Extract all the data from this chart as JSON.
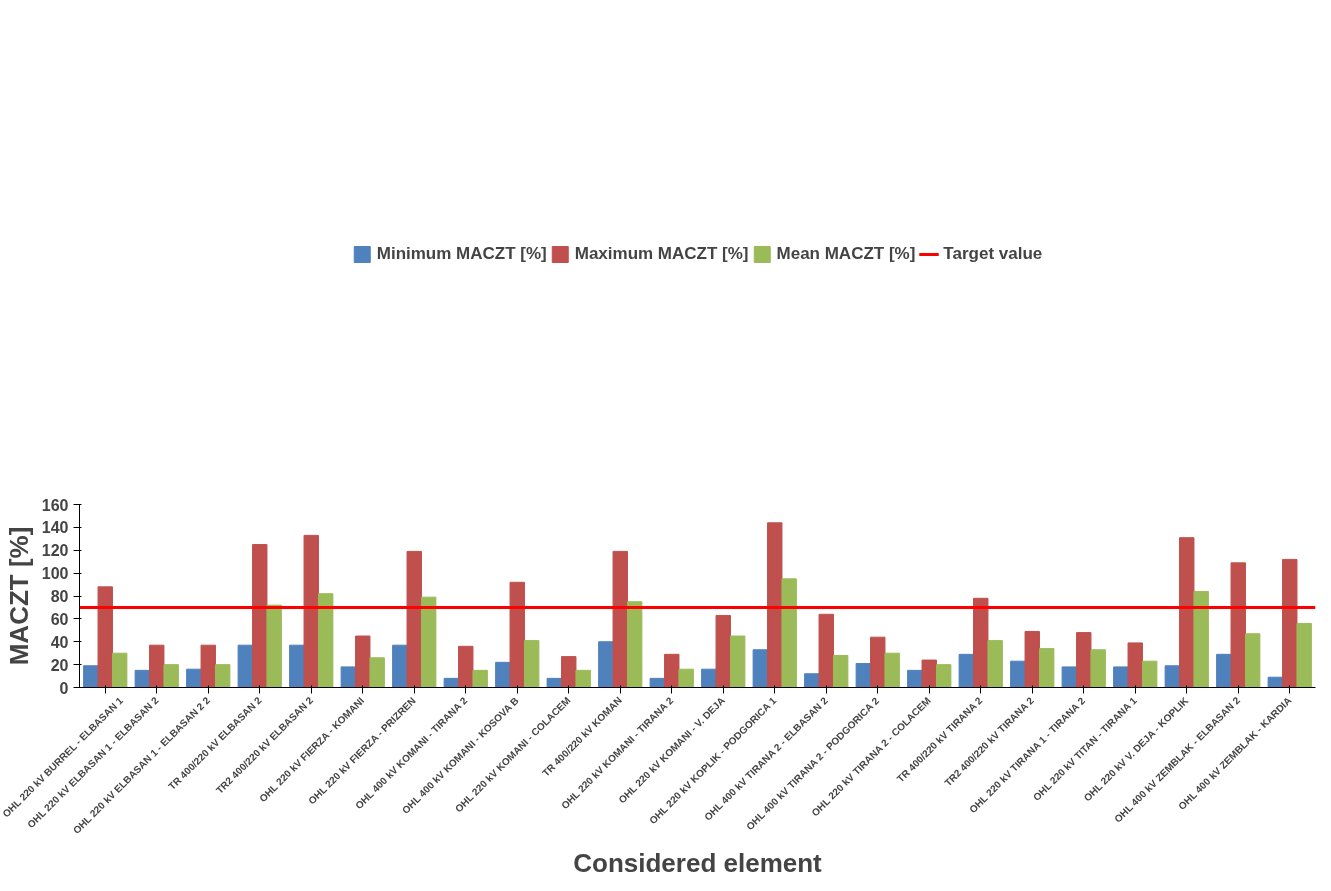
{
  "chart_data": {
    "type": "bar",
    "xlabel": "Considered element",
    "ylabel": "MACZT [%]",
    "categories": [
      "OHL 220 kV BURREL - ELBASAN 1",
      "OHL 220 kV ELBASAN 1 - ELBASAN 2",
      "OHL 220 kV ELBASAN 1 - ELBASAN 2 2",
      "TR 400/220 kV ELBASAN 2",
      "TR2 400/220 kV ELBASAN 2",
      "OHL 220 kV FIERZA - KOMANI",
      "OHL 220 kV FIERZA - PRIZREN",
      "OHL 400 kV KOMANI - TIRANA 2",
      "OHL 400 kV KOMANI - KOSOVA B",
      "OHL 220 kV KOMANI - COLACEM",
      "TR 400/220 kV KOMAN",
      "OHL 220 kV KOMANI - TIRANA 2",
      "OHL 220 kV KOMANI - V. DEJA",
      "OHL 220 kV KOPLIK - PODGORICA 1",
      "OHL 400 kV TIRANA 2 - ELBASAN 2",
      "OHL 400 kV TIRANA 2 - PODGORICA 2",
      "OHL 220 kV TIRANA 2 - COLACEM",
      "TR 400/220 kV TIRANA 2",
      "TR2 400/220 kV TIRANA 2",
      "OHL 220 kV TIRANA 1 - TIRANA 2",
      "OHL 220 kV TITAN - TIRANA 1",
      "OHL 220 kV V. DEJA - KOPLIK",
      "OHL 400 kV ZEMBLAK - ELBASAN 2",
      "OHL 400 kV ZEMBLAK - KARDIA"
    ],
    "series": [
      {
        "name": "Minimum MACZT [%]",
        "color": "#4f81bd",
        "values": [
          19,
          15,
          16,
          37,
          37,
          18,
          37,
          8,
          22,
          8,
          40,
          8,
          16,
          33,
          12,
          21,
          15,
          29,
          23,
          18,
          18,
          19,
          29,
          9
        ]
      },
      {
        "name": "Maximum MACZT [%]",
        "color": "#c0504d",
        "values": [
          88,
          37,
          37,
          125,
          133,
          45,
          119,
          36,
          92,
          27,
          119,
          29,
          63,
          144,
          64,
          44,
          24,
          78,
          49,
          48,
          39,
          131,
          109,
          112
        ]
      },
      {
        "name": "Mean MACZT [%]",
        "color": "#9bbb59",
        "values": [
          30,
          20,
          20,
          72,
          82,
          26,
          79,
          15,
          41,
          15,
          75,
          16,
          45,
          95,
          28,
          30,
          20,
          41,
          34,
          33,
          23,
          84,
          47,
          56
        ]
      }
    ],
    "ref_lines": [
      {
        "axis": "y",
        "value": 70,
        "label": "Target value",
        "color": "#ff0000"
      }
    ],
    "ylim": [
      0,
      160
    ],
    "yticks": [
      0,
      20,
      40,
      60,
      80,
      100,
      120,
      140,
      160
    ],
    "grid": false,
    "legend": "top"
  }
}
